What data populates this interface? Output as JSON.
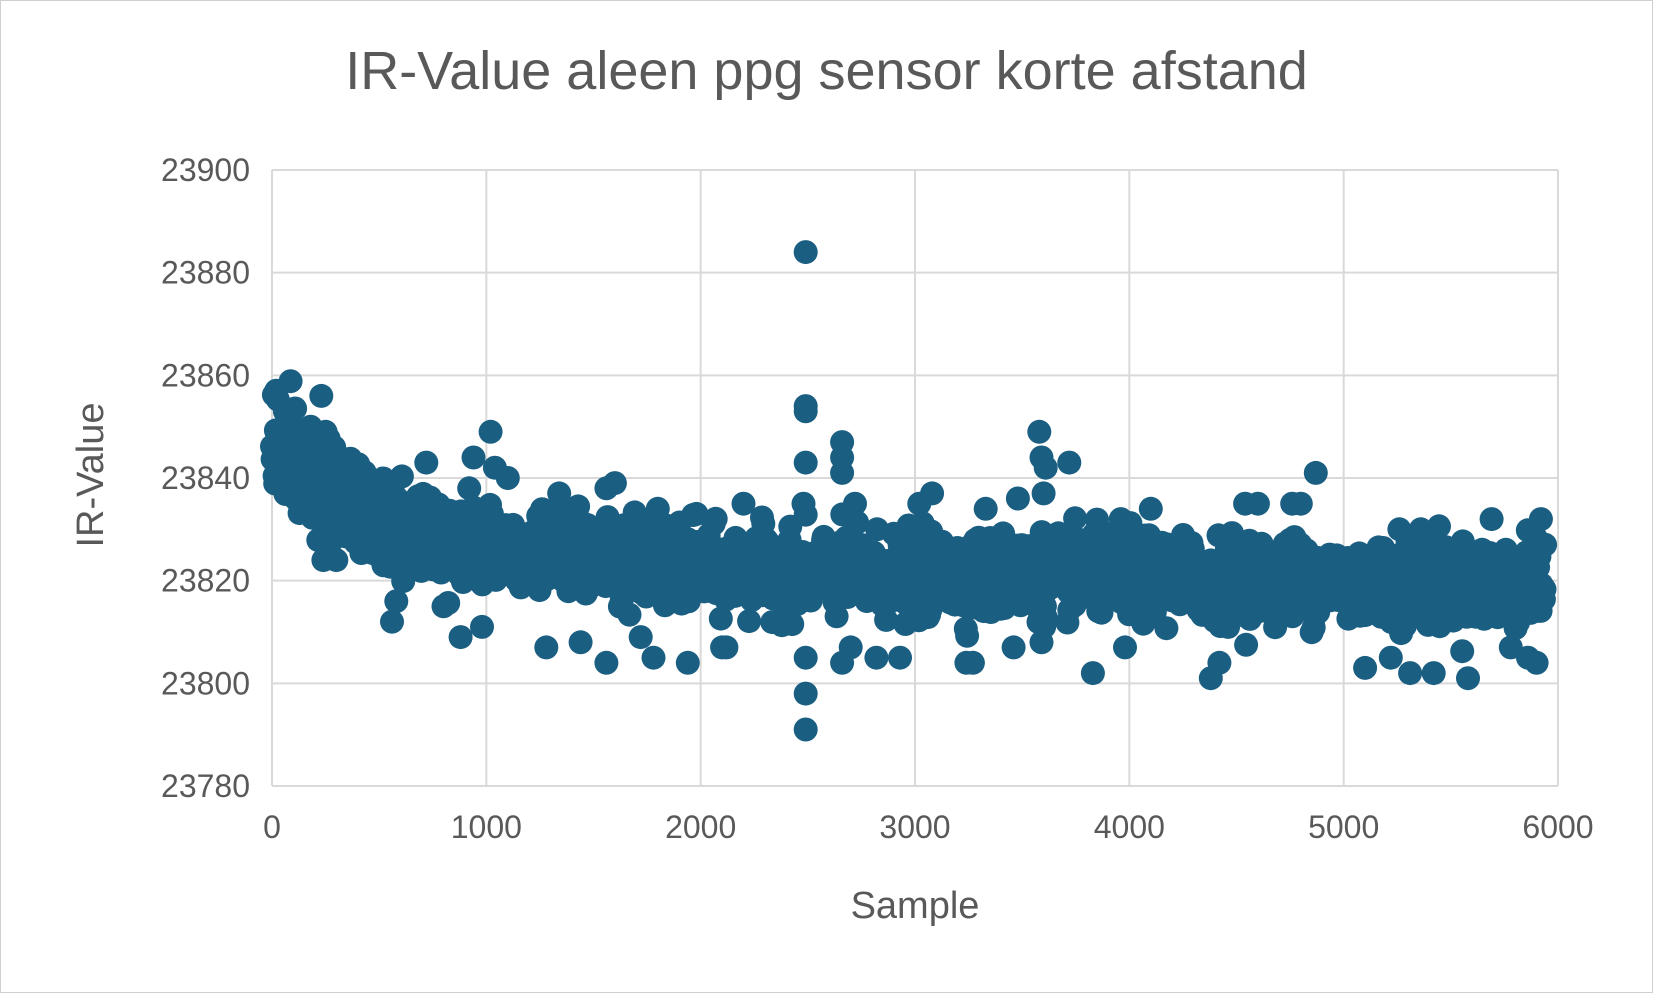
{
  "chart_data": {
    "type": "scatter",
    "title": "IR-Value aleen ppg sensor korte afstand",
    "xlabel": "Sample",
    "ylabel": "IR-Value",
    "xlim": [
      0,
      6000
    ],
    "ylim": [
      23780,
      23900
    ],
    "x_ticks": [
      "0",
      "1000",
      "2000",
      "3000",
      "4000",
      "5000",
      "6000"
    ],
    "y_ticks": [
      "23780",
      "23800",
      "23820",
      "23840",
      "23860",
      "23880",
      "23900"
    ],
    "grid": true,
    "legend": "none",
    "marker_color": "#1a5e82",
    "series": [
      {
        "name": "",
        "trend": [
          [
            0,
            23848
          ],
          [
            100,
            23842
          ],
          [
            200,
            23838
          ],
          [
            400,
            23834
          ],
          [
            600,
            23830
          ],
          [
            1000,
            23827
          ],
          [
            1500,
            23825
          ],
          [
            2000,
            23822
          ],
          [
            3000,
            23821
          ],
          [
            4000,
            23821
          ],
          [
            5000,
            23820
          ],
          [
            6000,
            23819
          ]
        ],
        "spread": 6,
        "sample_count": 5940,
        "outliers": [
          [
            20,
            23857
          ],
          [
            230,
            23856
          ],
          [
            60,
            23853
          ],
          [
            180,
            23850
          ],
          [
            250,
            23849
          ],
          [
            290,
            23846
          ],
          [
            240,
            23824
          ],
          [
            300,
            23824
          ],
          [
            520,
            23823
          ],
          [
            560,
            23812
          ],
          [
            580,
            23816
          ],
          [
            720,
            23843
          ],
          [
            800,
            23815
          ],
          [
            880,
            23809
          ],
          [
            920,
            23838
          ],
          [
            940,
            23844
          ],
          [
            980,
            23811
          ],
          [
            1020,
            23849
          ],
          [
            1040,
            23842
          ],
          [
            1100,
            23840
          ],
          [
            1280,
            23807
          ],
          [
            1340,
            23837
          ],
          [
            1440,
            23808
          ],
          [
            1560,
            23804
          ],
          [
            1560,
            23838
          ],
          [
            1600,
            23839
          ],
          [
            1720,
            23809
          ],
          [
            1780,
            23805
          ],
          [
            1800,
            23834
          ],
          [
            1940,
            23804
          ],
          [
            1980,
            23833
          ],
          [
            2100,
            23807
          ],
          [
            2120,
            23807
          ],
          [
            2200,
            23835
          ],
          [
            2480,
            23835
          ],
          [
            2490,
            23884
          ],
          [
            2490,
            23854
          ],
          [
            2490,
            23853
          ],
          [
            2490,
            23843
          ],
          [
            2490,
            23805
          ],
          [
            2490,
            23798
          ],
          [
            2490,
            23791
          ],
          [
            2660,
            23847
          ],
          [
            2660,
            23844
          ],
          [
            2660,
            23841
          ],
          [
            2660,
            23804
          ],
          [
            2700,
            23807
          ],
          [
            2720,
            23835
          ],
          [
            2820,
            23805
          ],
          [
            2930,
            23805
          ],
          [
            3020,
            23835
          ],
          [
            3080,
            23837
          ],
          [
            3240,
            23804
          ],
          [
            3270,
            23804
          ],
          [
            3330,
            23834
          ],
          [
            3460,
            23807
          ],
          [
            3480,
            23836
          ],
          [
            3580,
            23849
          ],
          [
            3590,
            23844
          ],
          [
            3590,
            23808
          ],
          [
            3600,
            23837
          ],
          [
            3610,
            23842
          ],
          [
            3720,
            23843
          ],
          [
            3830,
            23802
          ],
          [
            3960,
            23832
          ],
          [
            3980,
            23807
          ],
          [
            4100,
            23834
          ],
          [
            4380,
            23801
          ],
          [
            4420,
            23804
          ],
          [
            4540,
            23835
          ],
          [
            4600,
            23835
          ],
          [
            4760,
            23835
          ],
          [
            4800,
            23835
          ],
          [
            4870,
            23841
          ],
          [
            5100,
            23803
          ],
          [
            5220,
            23805
          ],
          [
            5260,
            23830
          ],
          [
            5310,
            23802
          ],
          [
            5360,
            23830
          ],
          [
            5420,
            23802
          ],
          [
            5580,
            23801
          ],
          [
            5690,
            23832
          ],
          [
            5780,
            23807
          ],
          [
            5860,
            23805
          ],
          [
            5900,
            23804
          ],
          [
            5920,
            23832
          ],
          [
            5940,
            23827
          ]
        ]
      }
    ]
  }
}
